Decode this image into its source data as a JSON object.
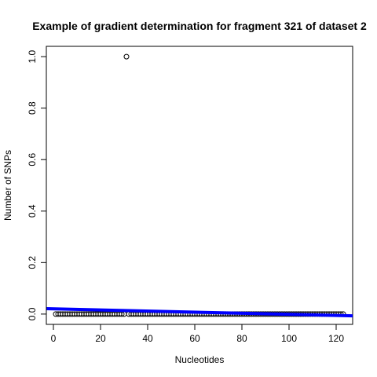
{
  "chart_data": {
    "type": "scatter",
    "title": "Example of gradient determination for fragment 321 of dataset 2",
    "xlabel": "Nucleotides",
    "ylabel": "Number of SNPs",
    "xlim": [
      -3,
      127
    ],
    "ylim": [
      -0.04,
      1.04
    ],
    "xticks": [
      0,
      20,
      40,
      60,
      80,
      100,
      120
    ],
    "yticks": [
      0.0,
      0.2,
      0.4,
      0.6,
      0.8,
      1.0
    ],
    "xtick_labels": [
      "0",
      "20",
      "40",
      "60",
      "80",
      "100",
      "120"
    ],
    "ytick_labels": [
      "0.0",
      "0.2",
      "0.4",
      "0.6",
      "0.8",
      "1.0"
    ],
    "grid": false,
    "points": {
      "x_start": 1,
      "x_end": 123,
      "default_y": 0,
      "exceptions": [
        {
          "x": 31,
          "y": 1
        }
      ]
    },
    "regression_line": {
      "name": "",
      "color": "#0000ff",
      "intercept": 0.0203,
      "slope": -0.000213
    },
    "point_color": "#000000"
  }
}
